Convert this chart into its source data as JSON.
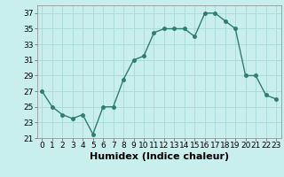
{
  "x": [
    0,
    1,
    2,
    3,
    4,
    5,
    6,
    7,
    8,
    9,
    10,
    11,
    12,
    13,
    14,
    15,
    16,
    17,
    18,
    19,
    20,
    21,
    22,
    23
  ],
  "y": [
    27,
    25,
    24,
    23.5,
    24,
    21.5,
    25,
    25,
    28.5,
    31,
    31.5,
    34.5,
    35,
    35,
    35,
    34,
    37,
    37,
    36,
    35,
    29,
    29,
    26.5,
    26
  ],
  "line_color": "#2e7d6e",
  "marker_color": "#2e7d6e",
  "bg_color": "#c8eeee",
  "grid_color": "#a8d8d8",
  "xlabel": "Humidex (Indice chaleur)",
  "xlabel_fontsize": 8,
  "tick_fontsize": 6.5,
  "ylim": [
    21,
    38
  ],
  "yticks": [
    21,
    23,
    25,
    27,
    29,
    31,
    33,
    35,
    37
  ],
  "xlim": [
    -0.5,
    23.5
  ],
  "xticks": [
    0,
    1,
    2,
    3,
    4,
    5,
    6,
    7,
    8,
    9,
    10,
    11,
    12,
    13,
    14,
    15,
    16,
    17,
    18,
    19,
    20,
    21,
    22,
    23
  ]
}
